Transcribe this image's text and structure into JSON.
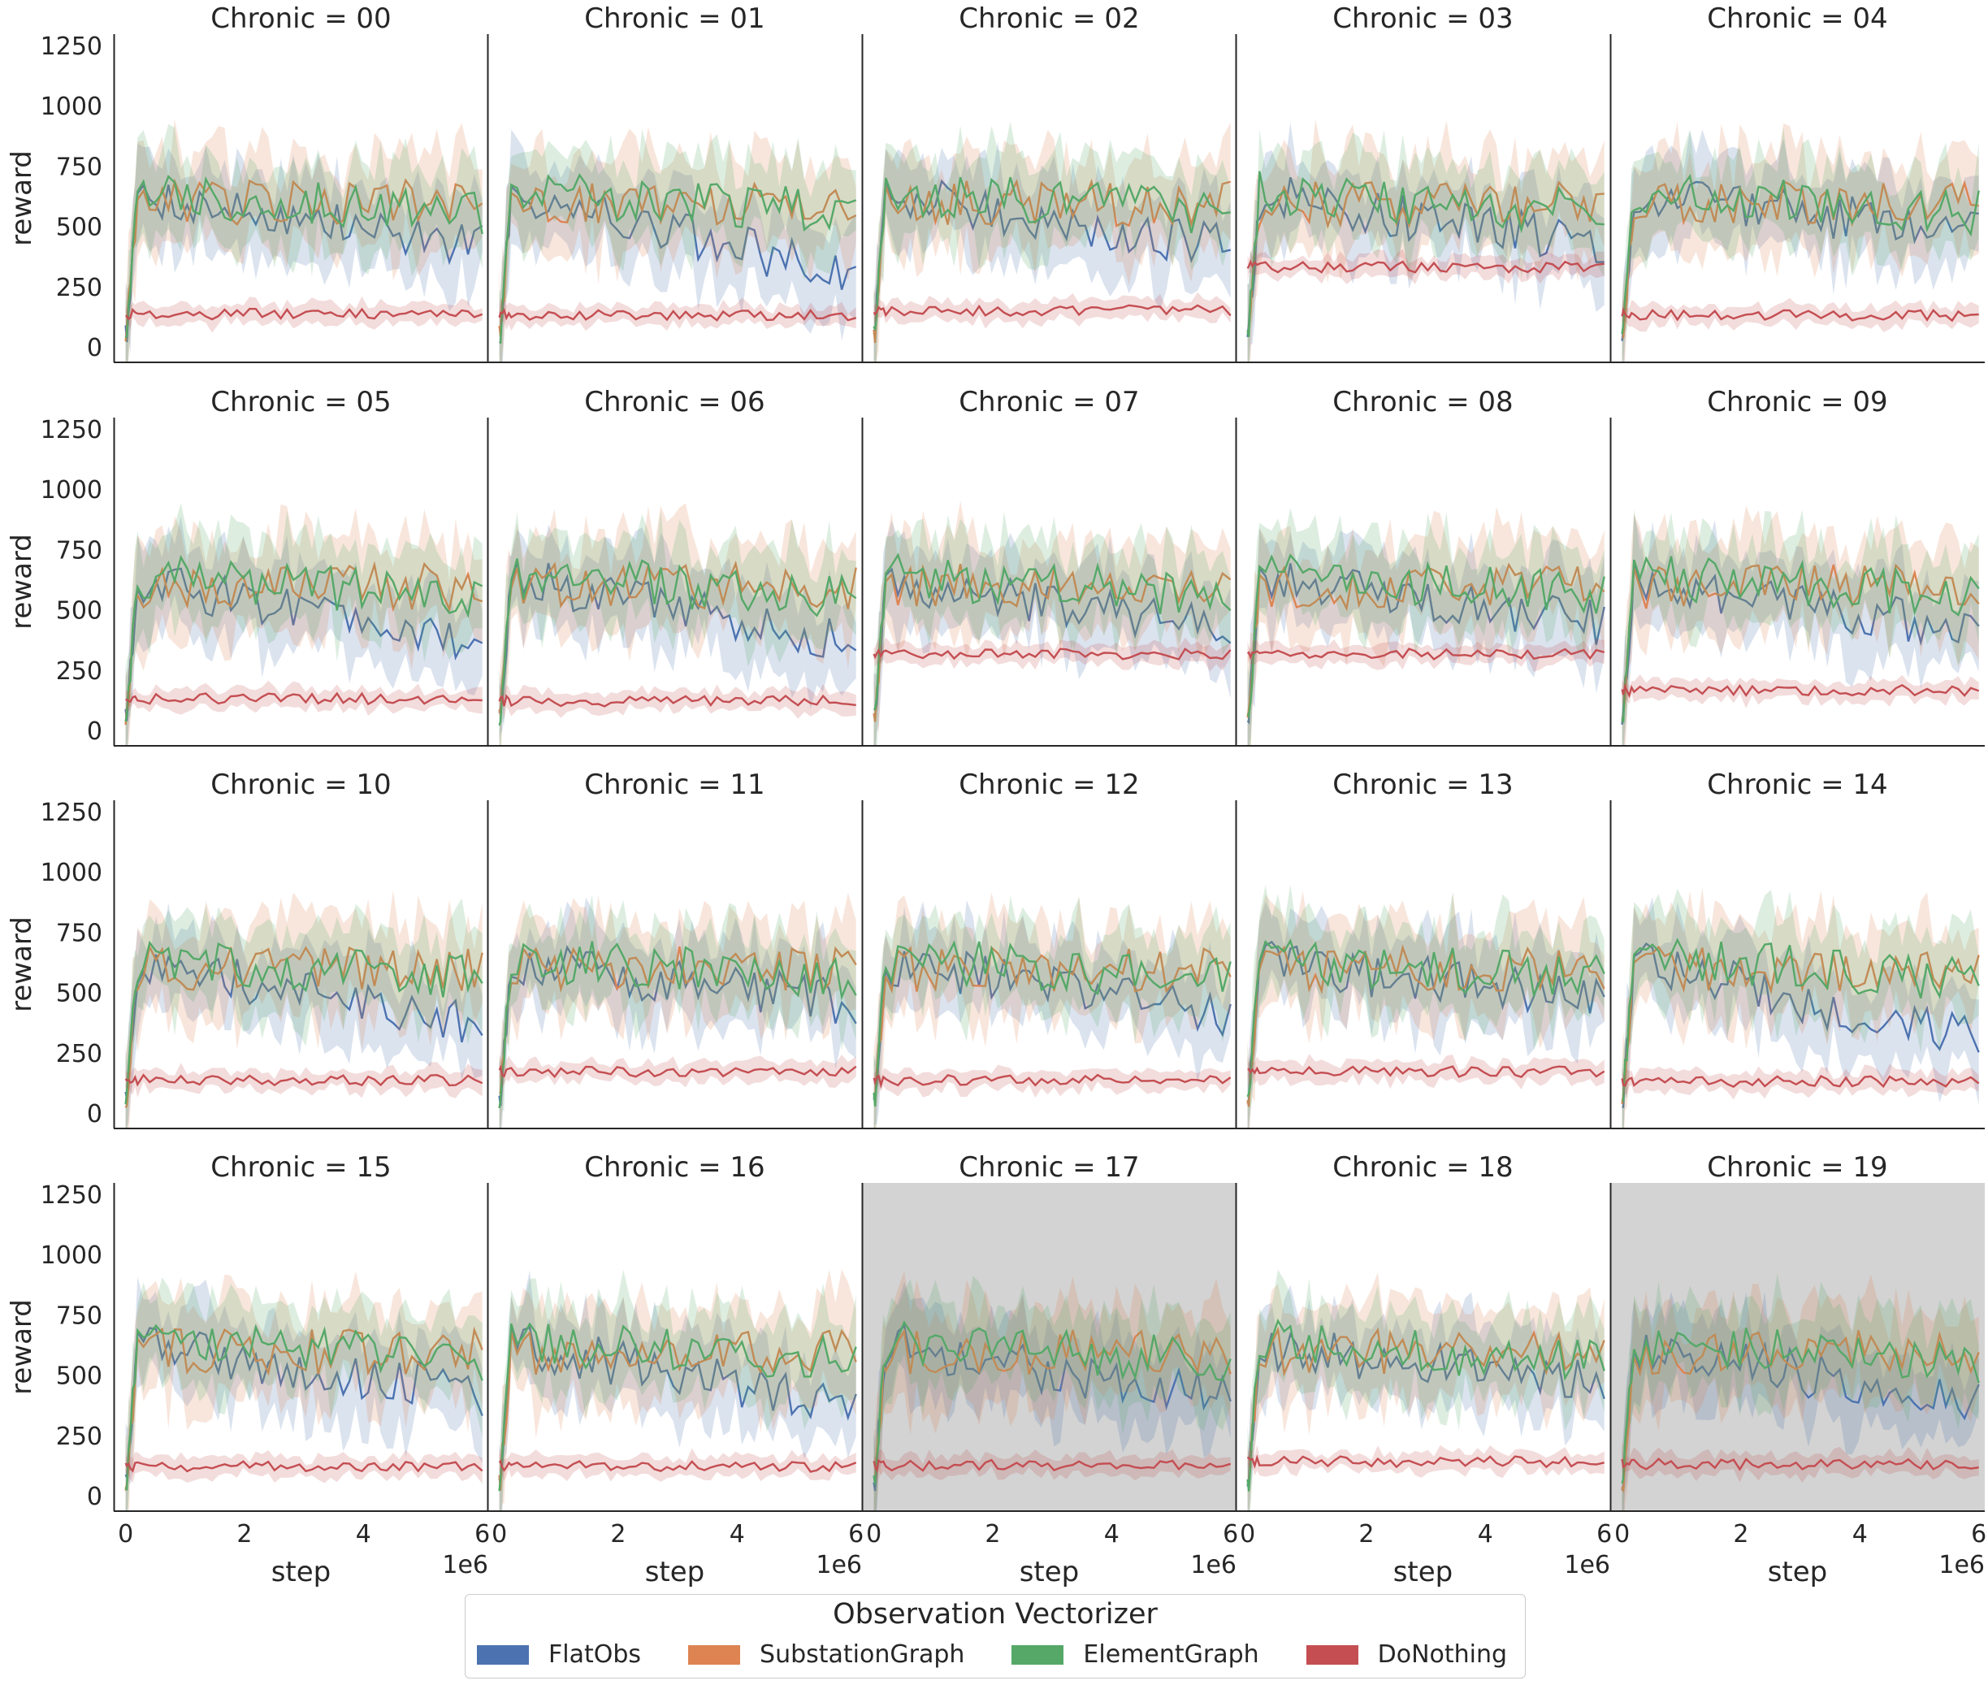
{
  "figure": {
    "facet_variable": "Chronic",
    "x_offset_text": "1e6"
  },
  "legend": {
    "title": "Observation Vectorizer",
    "items": [
      {
        "label": "FlatObs",
        "color": "#4c72b0"
      },
      {
        "label": "SubstationGraph",
        "color": "#dd8452"
      },
      {
        "label": "ElementGraph",
        "color": "#55a868"
      },
      {
        "label": "DoNothing",
        "color": "#c44e52"
      }
    ]
  },
  "chart_data": {
    "type": "line",
    "layout": "facet grid, 4 rows x 5 columns, shared axes",
    "xlabel": "step",
    "ylabel": "reward",
    "xlim": [
      -0.2,
      6.1
    ],
    "ylim": [
      -60,
      1300
    ],
    "x_scale_note": "x values in units of 1e6 steps",
    "xticks": [
      0,
      2,
      4,
      6
    ],
    "yticks": [
      0,
      250,
      500,
      750,
      1000,
      1250
    ],
    "grid": false,
    "legend_position": "bottom-center",
    "band": "shaded interval around each mean line",
    "series_levels": {
      "FlatObs": {
        "start": 20,
        "plateau": 620,
        "end": 400,
        "band": 170
      },
      "SubstationGraph": {
        "start": 20,
        "plateau": 600,
        "end": 600,
        "band": 190
      },
      "ElementGraph": {
        "start": 20,
        "plateau": 640,
        "end": 560,
        "band": 170
      },
      "DoNothing": {
        "start": 140,
        "plateau": 140,
        "end": 140,
        "band": 40
      }
    },
    "panels": [
      {
        "title": "Chronic = 00",
        "donothing": 140,
        "flat_end": 420,
        "highlight": false
      },
      {
        "title": "Chronic = 01",
        "donothing": 135,
        "flat_end": 300,
        "highlight": false
      },
      {
        "title": "Chronic = 02",
        "donothing": 155,
        "flat_end": 420,
        "highlight": false
      },
      {
        "title": "Chronic = 03",
        "donothing": 335,
        "flat_end": 420,
        "highlight": false
      },
      {
        "title": "Chronic = 04",
        "donothing": 135,
        "flat_end": 480,
        "highlight": false
      },
      {
        "title": "Chronic = 05",
        "donothing": 135,
        "flat_end": 340,
        "highlight": false
      },
      {
        "title": "Chronic = 06",
        "donothing": 125,
        "flat_end": 360,
        "highlight": false
      },
      {
        "title": "Chronic = 07",
        "donothing": 320,
        "flat_end": 440,
        "highlight": false
      },
      {
        "title": "Chronic = 08",
        "donothing": 320,
        "flat_end": 450,
        "highlight": false
      },
      {
        "title": "Chronic = 09",
        "donothing": 170,
        "flat_end": 420,
        "highlight": false
      },
      {
        "title": "Chronic = 10",
        "donothing": 140,
        "flat_end": 360,
        "highlight": false
      },
      {
        "title": "Chronic = 11",
        "donothing": 175,
        "flat_end": 460,
        "highlight": false
      },
      {
        "title": "Chronic = 12",
        "donothing": 140,
        "flat_end": 400,
        "highlight": false
      },
      {
        "title": "Chronic = 13",
        "donothing": 175,
        "flat_end": 480,
        "highlight": false
      },
      {
        "title": "Chronic = 14",
        "donothing": 135,
        "flat_end": 300,
        "highlight": false
      },
      {
        "title": "Chronic = 15",
        "donothing": 125,
        "flat_end": 430,
        "highlight": false
      },
      {
        "title": "Chronic = 16",
        "donothing": 125,
        "flat_end": 380,
        "highlight": false
      },
      {
        "title": "Chronic = 17",
        "donothing": 130,
        "flat_end": 400,
        "highlight": true
      },
      {
        "title": "Chronic = 18",
        "donothing": 145,
        "flat_end": 460,
        "highlight": false
      },
      {
        "title": "Chronic = 19",
        "donothing": 135,
        "flat_end": 380,
        "highlight": true
      }
    ]
  }
}
